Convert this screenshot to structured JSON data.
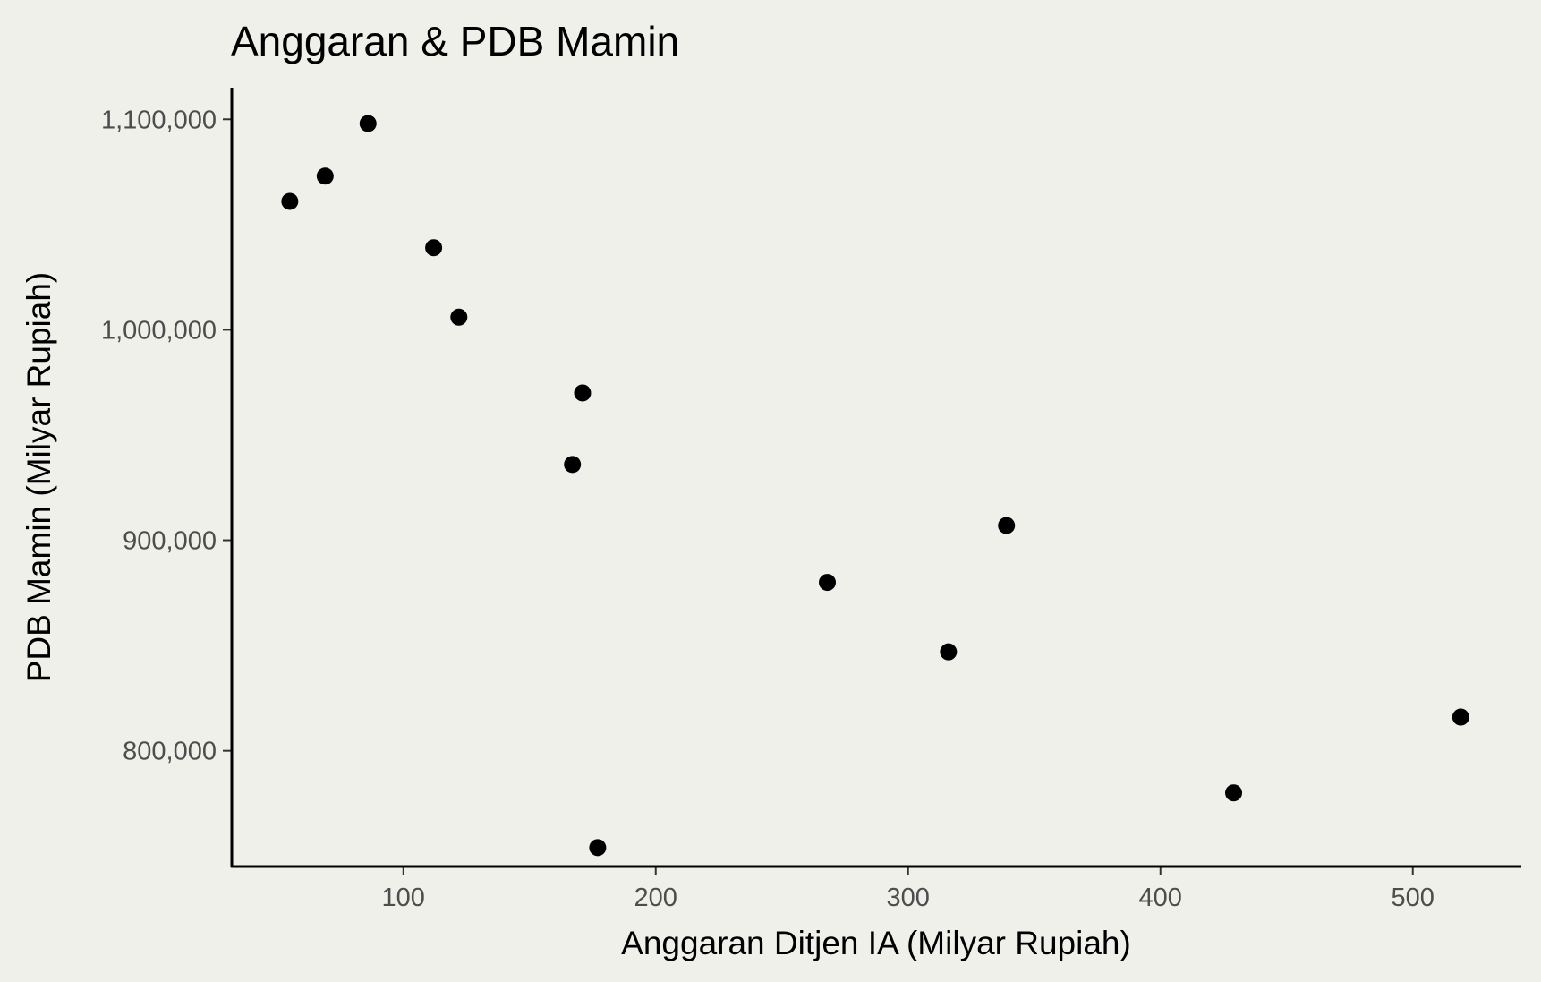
{
  "chart_data": {
    "type": "scatter",
    "title": "Anggaran & PDB Mamin",
    "xlabel": "Anggaran Ditjen IA (Milyar Rupiah)",
    "ylabel": "PDB Mamin (Milyar Rupiah)",
    "xlim": [
      32,
      543
    ],
    "ylim": [
      745000,
      1115000
    ],
    "x_ticks": [
      100,
      200,
      300,
      400,
      500
    ],
    "x_tick_labels": [
      "100",
      "200",
      "300",
      "400",
      "500"
    ],
    "y_ticks": [
      800000,
      900000,
      1000000,
      1100000
    ],
    "y_tick_labels": [
      "800,000",
      "900,000",
      "1,000,000",
      "1,100,000"
    ],
    "grid": false,
    "point_color": "#000000",
    "panel_background": "#f0f0eb",
    "points": [
      {
        "x": 55,
        "y": 1061000
      },
      {
        "x": 69,
        "y": 1073000
      },
      {
        "x": 86,
        "y": 1098000
      },
      {
        "x": 112,
        "y": 1039000
      },
      {
        "x": 122,
        "y": 1006000
      },
      {
        "x": 167,
        "y": 936000
      },
      {
        "x": 171,
        "y": 970000
      },
      {
        "x": 177,
        "y": 754000
      },
      {
        "x": 268,
        "y": 880000
      },
      {
        "x": 316,
        "y": 847000
      },
      {
        "x": 339,
        "y": 907000
      },
      {
        "x": 429,
        "y": 780000
      },
      {
        "x": 519,
        "y": 816000
      }
    ]
  }
}
